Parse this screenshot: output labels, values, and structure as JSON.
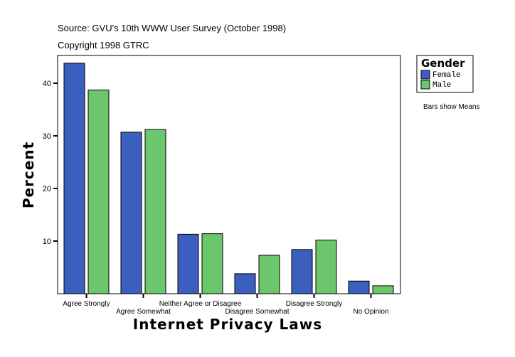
{
  "chart_data": {
    "type": "bar",
    "source": "Source: GVU's 10th WWW User Survey (October 1998)",
    "copyright": "Copyright 1998 GTRC",
    "xlabel": "Internet Privacy Laws",
    "ylabel": "Percent",
    "ylim": [
      0,
      45
    ],
    "yticks": [
      10,
      20,
      30,
      40
    ],
    "categories": [
      "Agree Strongly",
      "Agree Somewhat",
      "Neither Agree or Disagree",
      "Disagree Somewhat",
      "Disagree Strongly",
      "No Opinion"
    ],
    "series": [
      {
        "name": "Female",
        "color": "#3a5fbf",
        "values": [
          43.8,
          30.7,
          11.3,
          3.8,
          8.4,
          2.4
        ]
      },
      {
        "name": "Male",
        "color": "#6cc76c",
        "values": [
          38.7,
          31.2,
          11.4,
          7.3,
          10.2,
          1.5
        ]
      }
    ],
    "legend": {
      "title": "Gender",
      "placement": "right"
    },
    "note": "Bars show Means",
    "grid": false
  }
}
